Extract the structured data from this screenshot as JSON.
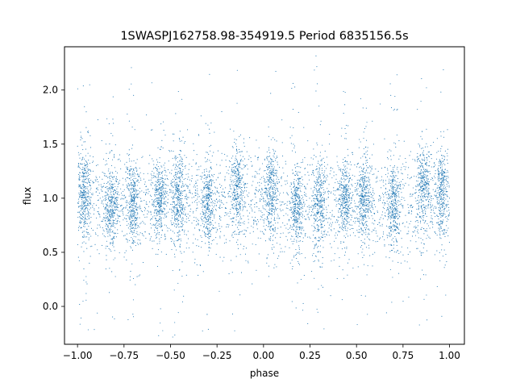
{
  "chart_data": {
    "type": "scatter",
    "title": "1SWASPJ162758.98-354919.5 Period 6835156.5s",
    "xlabel": "phase",
    "ylabel": "flux",
    "xlim": [
      -1.07,
      1.08
    ],
    "ylim": [
      -0.35,
      2.4
    ],
    "x_ticks": [
      -1.0,
      -0.75,
      -0.5,
      -0.25,
      0.0,
      0.25,
      0.5,
      0.75,
      1.0
    ],
    "x_tick_labels": [
      "−1.00",
      "−0.75",
      "−0.50",
      "−0.25",
      "0.00",
      "0.25",
      "0.50",
      "0.75",
      "1.00"
    ],
    "y_ticks": [
      0.0,
      0.5,
      1.0,
      1.5,
      2.0
    ],
    "y_tick_labels": [
      "0.0",
      "0.5",
      "1.0",
      "1.5",
      "2.0"
    ],
    "grid": false,
    "marker_color": "#1f77b4",
    "series": [
      {
        "x_range": [
          -1.0,
          1.0
        ],
        "dense_clusters": [
          {
            "center_phase": -0.96,
            "y_mean": 1.05,
            "y_spread": 0.2
          },
          {
            "center_phase": -0.82,
            "y_mean": 0.9,
            "y_spread": 0.2
          },
          {
            "center_phase": -0.7,
            "y_mean": 0.95,
            "y_spread": 0.2
          },
          {
            "center_phase": -0.56,
            "y_mean": 1.0,
            "y_spread": 0.18
          },
          {
            "center_phase": -0.46,
            "y_mean": 1.0,
            "y_spread": 0.22
          },
          {
            "center_phase": -0.3,
            "y_mean": 0.95,
            "y_spread": 0.2
          },
          {
            "center_phase": -0.14,
            "y_mean": 1.1,
            "y_spread": 0.2
          },
          {
            "center_phase": 0.04,
            "y_mean": 1.05,
            "y_spread": 0.2
          },
          {
            "center_phase": 0.18,
            "y_mean": 0.9,
            "y_spread": 0.2
          },
          {
            "center_phase": 0.3,
            "y_mean": 0.95,
            "y_spread": 0.2
          },
          {
            "center_phase": 0.44,
            "y_mean": 1.0,
            "y_spread": 0.18
          },
          {
            "center_phase": 0.54,
            "y_mean": 1.0,
            "y_spread": 0.22
          },
          {
            "center_phase": 0.7,
            "y_mean": 0.95,
            "y_spread": 0.2
          },
          {
            "center_phase": 0.86,
            "y_mean": 1.1,
            "y_spread": 0.2
          },
          {
            "center_phase": 0.96,
            "y_mean": 1.05,
            "y_spread": 0.2
          }
        ]
      }
    ]
  }
}
